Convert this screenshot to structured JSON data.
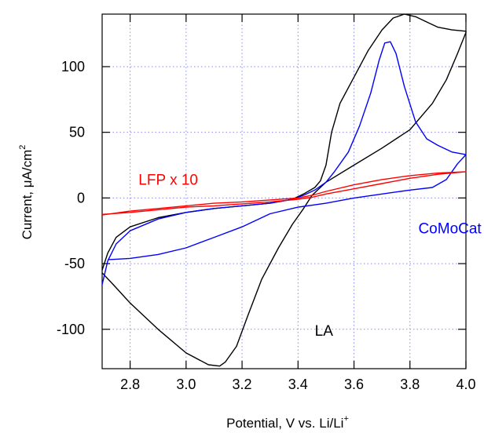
{
  "chart_data": {
    "type": "line",
    "title": "",
    "xlabel": "Potential, V vs. Li/Li",
    "xlabel_sup": "+",
    "ylabel": "Current, μA/cm",
    "ylabel_sup": "2",
    "xlim": [
      2.7,
      4.0
    ],
    "ylim": [
      -130,
      140
    ],
    "x_ticks": [
      2.8,
      3.0,
      3.2,
      3.4,
      3.6,
      3.8,
      4.0
    ],
    "x_tick_labels": [
      "2.8",
      "3.0",
      "3.2",
      "3.4",
      "3.6",
      "3.8",
      "4.0"
    ],
    "y_ticks": [
      -100,
      -50,
      0,
      50,
      100
    ],
    "y_tick_labels": [
      "-100",
      "-50",
      "0",
      "50",
      "100"
    ],
    "grid": true,
    "series": [
      {
        "name": "LA",
        "color": "#000000",
        "points": [
          [
            2.7,
            -55
          ],
          [
            2.72,
            -42
          ],
          [
            2.75,
            -30
          ],
          [
            2.8,
            -22
          ],
          [
            2.9,
            -15
          ],
          [
            3.0,
            -11
          ],
          [
            3.1,
            -8
          ],
          [
            3.2,
            -6
          ],
          [
            3.3,
            -4
          ],
          [
            3.38,
            -1
          ],
          [
            3.42,
            3
          ],
          [
            3.46,
            8
          ],
          [
            3.48,
            13
          ],
          [
            3.5,
            25
          ],
          [
            3.52,
            50
          ],
          [
            3.55,
            72
          ],
          [
            3.6,
            92
          ],
          [
            3.65,
            112
          ],
          [
            3.7,
            128
          ],
          [
            3.74,
            137
          ],
          [
            3.78,
            140
          ],
          [
            3.82,
            138
          ],
          [
            3.86,
            134
          ],
          [
            3.9,
            130
          ],
          [
            3.95,
            128
          ],
          [
            4.0,
            127
          ],
          [
            4.0,
            126
          ],
          [
            3.97,
            110
          ],
          [
            3.93,
            90
          ],
          [
            3.88,
            72
          ],
          [
            3.8,
            52
          ],
          [
            3.7,
            38
          ],
          [
            3.6,
            25
          ],
          [
            3.5,
            12
          ],
          [
            3.45,
            2
          ],
          [
            3.42,
            -8
          ],
          [
            3.38,
            -20
          ],
          [
            3.33,
            -38
          ],
          [
            3.27,
            -62
          ],
          [
            3.22,
            -90
          ],
          [
            3.18,
            -113
          ],
          [
            3.14,
            -125
          ],
          [
            3.12,
            -128
          ],
          [
            3.08,
            -127
          ],
          [
            3.0,
            -118
          ],
          [
            2.9,
            -100
          ],
          [
            2.8,
            -80
          ],
          [
            2.74,
            -66
          ],
          [
            2.7,
            -57
          ]
        ]
      },
      {
        "name": "CoMoCat",
        "color": "#0000ff",
        "points": [
          [
            2.7,
            -66
          ],
          [
            2.72,
            -48
          ],
          [
            2.75,
            -35
          ],
          [
            2.8,
            -25
          ],
          [
            2.9,
            -16
          ],
          [
            3.0,
            -11
          ],
          [
            3.1,
            -8
          ],
          [
            3.2,
            -6
          ],
          [
            3.3,
            -4
          ],
          [
            3.38,
            -1
          ],
          [
            3.42,
            2
          ],
          [
            3.46,
            6
          ],
          [
            3.5,
            12
          ],
          [
            3.53,
            20
          ],
          [
            3.58,
            35
          ],
          [
            3.62,
            55
          ],
          [
            3.66,
            80
          ],
          [
            3.69,
            105
          ],
          [
            3.71,
            118
          ],
          [
            3.73,
            119
          ],
          [
            3.75,
            110
          ],
          [
            3.78,
            85
          ],
          [
            3.82,
            58
          ],
          [
            3.86,
            45
          ],
          [
            3.9,
            40
          ],
          [
            3.95,
            35
          ],
          [
            4.0,
            33
          ],
          [
            3.97,
            26
          ],
          [
            3.93,
            14
          ],
          [
            3.88,
            8
          ],
          [
            3.8,
            6
          ],
          [
            3.7,
            3
          ],
          [
            3.6,
            0
          ],
          [
            3.5,
            -4
          ],
          [
            3.4,
            -7
          ],
          [
            3.3,
            -12
          ],
          [
            3.2,
            -22
          ],
          [
            3.1,
            -30
          ],
          [
            3.0,
            -38
          ],
          [
            2.9,
            -43
          ],
          [
            2.8,
            -46
          ],
          [
            2.72,
            -47
          ]
        ]
      },
      {
        "name": "LFP x 10",
        "color": "#ff0000",
        "points": [
          [
            2.7,
            -13
          ],
          [
            2.8,
            -10
          ],
          [
            2.9,
            -8
          ],
          [
            3.0,
            -6
          ],
          [
            3.1,
            -4
          ],
          [
            3.2,
            -3
          ],
          [
            3.3,
            -1.5
          ],
          [
            3.4,
            0
          ],
          [
            3.45,
            2
          ],
          [
            3.5,
            5
          ],
          [
            3.6,
            10
          ],
          [
            3.7,
            14
          ],
          [
            3.8,
            17
          ],
          [
            3.9,
            19
          ],
          [
            4.0,
            20
          ],
          [
            3.9,
            18
          ],
          [
            3.8,
            15
          ],
          [
            3.7,
            11
          ],
          [
            3.6,
            7
          ],
          [
            3.5,
            3
          ],
          [
            3.45,
            0.5
          ],
          [
            3.4,
            -1
          ],
          [
            3.3,
            -3
          ],
          [
            3.2,
            -4.5
          ],
          [
            3.1,
            -6
          ],
          [
            3.0,
            -7
          ],
          [
            2.9,
            -9
          ],
          [
            2.8,
            -11
          ],
          [
            2.7,
            -12.5
          ]
        ]
      }
    ],
    "annotations": [
      {
        "text": "LFP x 10",
        "color": "#ff0000",
        "x": 2.83,
        "y": 10
      },
      {
        "text": "CoMoCat",
        "color": "#0000ff",
        "x": 3.83,
        "y": -27
      },
      {
        "text": "LA",
        "color": "#000000",
        "x": 3.46,
        "y": -105
      }
    ]
  }
}
